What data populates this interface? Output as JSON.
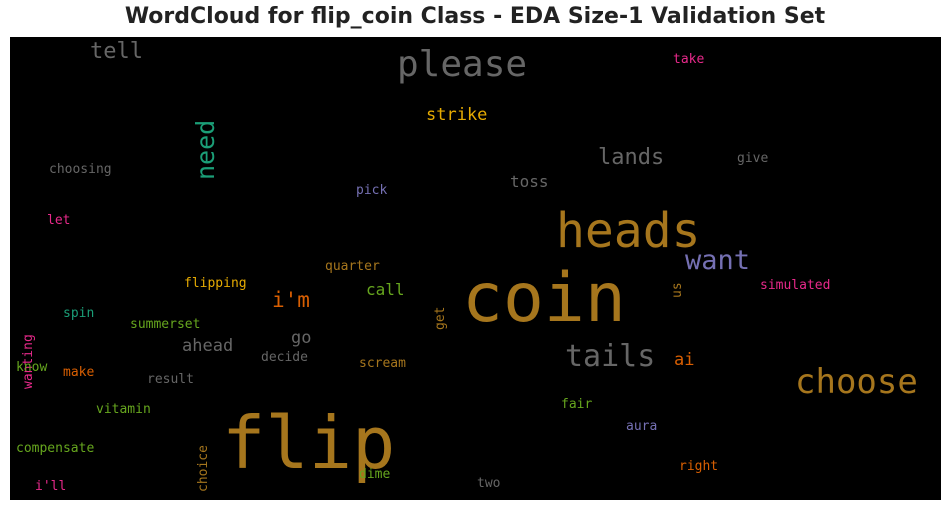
{
  "title": "WordCloud for flip_coin Class - EDA Size-1 Validation Set",
  "chart_data": {
    "type": "wordcloud",
    "background": "#000000",
    "words": [
      {
        "text": "coin",
        "color": "#a6761d",
        "weight": 1.0
      },
      {
        "text": "flip",
        "color": "#a6761d",
        "weight": 0.92
      },
      {
        "text": "heads",
        "color": "#a6761d",
        "weight": 0.62
      },
      {
        "text": "please",
        "color": "#666666",
        "weight": 0.5
      },
      {
        "text": "choose",
        "color": "#a6761d",
        "weight": 0.45
      },
      {
        "text": "tails",
        "color": "#666666",
        "weight": 0.42
      },
      {
        "text": "want",
        "color": "#7570b3",
        "weight": 0.38
      },
      {
        "text": "need",
        "color": "#1b9e77",
        "weight": 0.35,
        "vertical": true
      },
      {
        "text": "lands",
        "color": "#666666",
        "weight": 0.3
      },
      {
        "text": "tell",
        "color": "#666666",
        "weight": 0.3
      },
      {
        "text": "i'm",
        "color": "#d95f02",
        "weight": 0.28
      },
      {
        "text": "strike",
        "color": "#e6ab02",
        "weight": 0.24
      },
      {
        "text": "ahead",
        "color": "#666666",
        "weight": 0.24
      },
      {
        "text": "go",
        "color": "#666666",
        "weight": 0.24
      },
      {
        "text": "call",
        "color": "#66a61e",
        "weight": 0.22
      },
      {
        "text": "toss",
        "color": "#666666",
        "weight": 0.22
      },
      {
        "text": "ai",
        "color": "#d95f02",
        "weight": 0.22
      },
      {
        "text": "take",
        "color": "#e7298a",
        "weight": 0.18
      },
      {
        "text": "give",
        "color": "#666666",
        "weight": 0.18
      },
      {
        "text": "choosing",
        "color": "#666666",
        "weight": 0.18
      },
      {
        "text": "pick",
        "color": "#7570b3",
        "weight": 0.18
      },
      {
        "text": "let",
        "color": "#e7298a",
        "weight": 0.18
      },
      {
        "text": "quarter",
        "color": "#a6761d",
        "weight": 0.18
      },
      {
        "text": "flipping",
        "color": "#e6ab02",
        "weight": 0.18
      },
      {
        "text": "us",
        "color": "#a6761d",
        "weight": 0.18,
        "vertical": true
      },
      {
        "text": "simulated",
        "color": "#e7298a",
        "weight": 0.18
      },
      {
        "text": "wanting",
        "color": "#e7298a",
        "weight": 0.18,
        "vertical": true
      },
      {
        "text": "spin",
        "color": "#1b9e77",
        "weight": 0.18
      },
      {
        "text": "summerset",
        "color": "#66a61e",
        "weight": 0.18
      },
      {
        "text": "get",
        "color": "#a6761d",
        "weight": 0.18,
        "vertical": true
      },
      {
        "text": "decide",
        "color": "#666666",
        "weight": 0.18
      },
      {
        "text": "scream",
        "color": "#a6761d",
        "weight": 0.18
      },
      {
        "text": "know",
        "color": "#66a61e",
        "weight": 0.18
      },
      {
        "text": "make",
        "color": "#d95f02",
        "weight": 0.18
      },
      {
        "text": "result",
        "color": "#666666",
        "weight": 0.18
      },
      {
        "text": "vitamin",
        "color": "#66a61e",
        "weight": 0.18
      },
      {
        "text": "choice",
        "color": "#a6761d",
        "weight": 0.18,
        "vertical": true
      },
      {
        "text": "fair",
        "color": "#66a61e",
        "weight": 0.18
      },
      {
        "text": "aura",
        "color": "#7570b3",
        "weight": 0.18
      },
      {
        "text": "compensate",
        "color": "#66a61e",
        "weight": 0.18
      },
      {
        "text": "right",
        "color": "#d95f02",
        "weight": 0.18
      },
      {
        "text": "dime",
        "color": "#66a61e",
        "weight": 0.18
      },
      {
        "text": "i'll",
        "color": "#e7298a",
        "weight": 0.18
      },
      {
        "text": "two",
        "color": "#666666",
        "weight": 0.18
      }
    ]
  }
}
